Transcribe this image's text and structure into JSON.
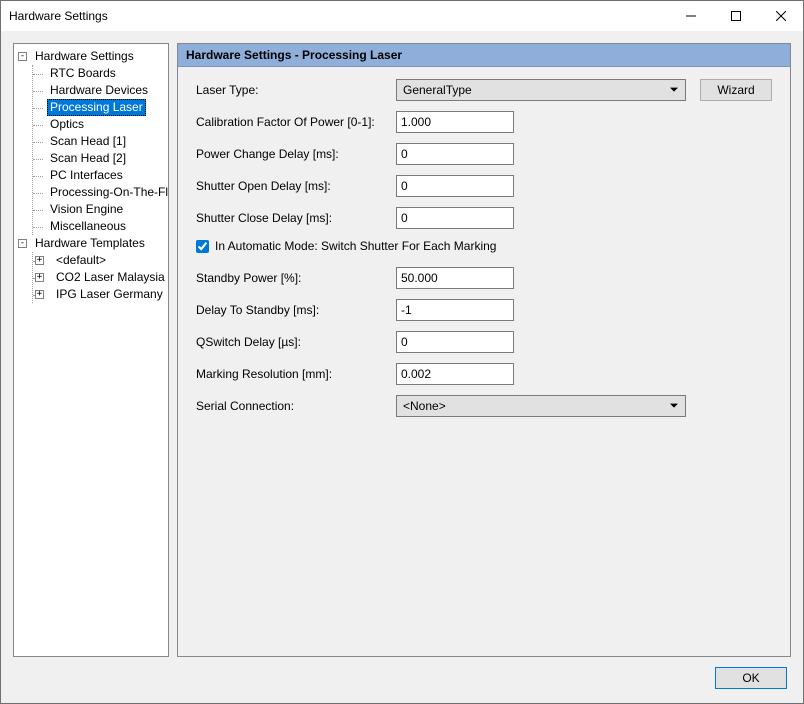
{
  "window": {
    "title": "Hardware Settings"
  },
  "tree": {
    "root1": {
      "label": "Hardware Settings",
      "expanded": true,
      "children": [
        "RTC Boards",
        "Hardware Devices",
        "Processing Laser",
        "Optics",
        "Scan Head [1]",
        "Scan Head [2]",
        "PC Interfaces",
        "Processing-On-The-Fly",
        "Vision Engine",
        "Miscellaneous"
      ],
      "selected_index": 2
    },
    "root2": {
      "label": "Hardware Templates",
      "expanded": true,
      "children": [
        "<default>",
        "CO2 Laser Malaysia",
        "IPG Laser Germany"
      ]
    }
  },
  "panel": {
    "header": "Hardware Settings - Processing Laser",
    "fields": {
      "laser_type": {
        "label": "Laser Type:",
        "value": "GeneralType",
        "wizard": "Wizard"
      },
      "calib": {
        "label": "Calibration Factor Of Power [0-1]:",
        "value": "1.000"
      },
      "power_delay": {
        "label": "Power Change Delay [ms]:",
        "value": "0"
      },
      "shutter_open": {
        "label": "Shutter Open Delay [ms]:",
        "value": "0"
      },
      "shutter_close": {
        "label": "Shutter Close Delay [ms]:",
        "value": "0"
      },
      "auto_mode": {
        "label": "In Automatic Mode: Switch Shutter For Each Marking",
        "checked": true
      },
      "standby": {
        "label": "Standby Power [%]:",
        "value": "50.000"
      },
      "delay_standby": {
        "label": "Delay To Standby [ms]:",
        "value": "-1"
      },
      "qswitch": {
        "label": "QSwitch Delay [µs]:",
        "value": "0"
      },
      "mark_res": {
        "label": "Marking Resolution [mm]:",
        "value": "0.002"
      },
      "serial": {
        "label": "Serial Connection:",
        "value": "<None>"
      }
    }
  },
  "footer": {
    "ok": "OK"
  },
  "colors": {
    "header_bg": "#8faed9",
    "selection_bg": "#0078d7",
    "panel_bg": "#f0f0f0",
    "border": "#828790",
    "btn_bg": "#e1e1e1"
  }
}
